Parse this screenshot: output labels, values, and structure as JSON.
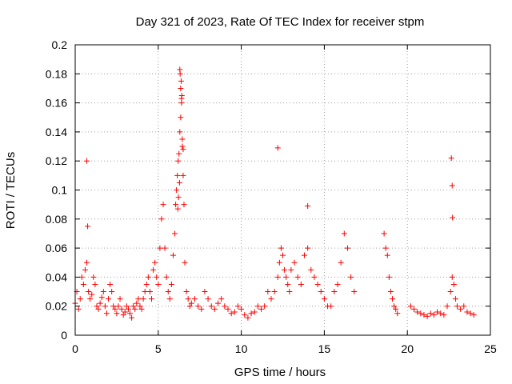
{
  "chart_data": {
    "type": "scatter",
    "title": "Day 321 of 2023, Rate Of TEC Index for receiver stpm",
    "xlabel": "GPS time / hours",
    "ylabel": "ROTI / TECUs",
    "xlim": [
      0,
      25
    ],
    "ylim": [
      0,
      0.2
    ],
    "xticks": [
      0,
      5,
      10,
      15,
      20,
      25
    ],
    "yticks": [
      0,
      0.02,
      0.04,
      0.06,
      0.08,
      0.1,
      0.12,
      0.14,
      0.16,
      0.18,
      0.2
    ],
    "grid": true,
    "marker": "+",
    "color": "#ff0000",
    "series": [
      {
        "values_desc": "ROTI samples",
        "x": [
          0.0,
          0.1,
          0.2,
          0.3,
          0.4,
          0.5,
          0.6,
          0.7,
          0.8,
          0.9,
          1.0,
          1.1,
          1.2,
          1.3,
          1.4,
          1.5,
          1.6,
          1.7,
          1.8,
          1.9,
          2.0,
          2.1,
          2.2,
          2.3,
          2.4,
          2.5,
          2.6,
          2.7,
          2.8,
          2.9,
          3.0,
          3.1,
          3.2,
          3.3,
          3.4,
          3.5,
          3.6,
          3.7,
          3.8,
          3.9,
          4.0,
          4.1,
          4.2,
          4.3,
          4.4,
          4.5,
          4.6,
          4.7,
          4.8,
          4.9,
          5.0,
          5.1,
          5.2,
          5.3,
          5.4,
          5.5,
          5.6,
          5.7,
          5.8,
          5.9,
          6.0,
          6.05,
          6.1,
          6.15,
          6.2,
          6.25,
          6.3,
          6.35,
          6.4,
          6.45,
          6.5,
          6.55,
          6.6,
          6.7,
          6.8,
          6.9,
          7.0,
          7.2,
          7.4,
          7.6,
          7.8,
          8.0,
          8.2,
          8.4,
          8.6,
          8.8,
          9.0,
          9.2,
          9.4,
          9.6,
          9.8,
          10.0,
          10.2,
          10.4,
          10.6,
          10.8,
          11.0,
          11.2,
          11.4,
          11.6,
          11.8,
          12.0,
          12.2,
          12.3,
          12.4,
          12.5,
          12.6,
          12.7,
          12.8,
          12.9,
          13.0,
          13.2,
          13.4,
          13.6,
          13.8,
          14.0,
          14.2,
          14.4,
          14.6,
          14.8,
          15.0,
          15.2,
          15.4,
          15.6,
          15.8,
          16.0,
          16.2,
          16.4,
          16.6,
          16.8,
          18.6,
          18.7,
          18.8,
          18.9,
          19.0,
          19.1,
          19.2,
          19.3,
          19.4,
          20.2,
          20.4,
          20.6,
          20.8,
          21.0,
          21.2,
          21.4,
          21.6,
          21.8,
          22.0,
          22.2,
          22.4,
          22.6,
          22.7,
          22.8,
          22.9,
          23.0,
          23.2,
          23.4,
          23.6,
          23.8,
          24.0,
          0.7,
          0.75,
          12.2,
          14.0,
          22.65,
          22.7,
          22.72,
          6.3,
          6.35,
          6.4,
          6.45,
          6.5,
          6.32,
          6.38,
          6.42,
          6.28,
          6.22,
          6.18
        ],
        "y": [
          0.022,
          0.03,
          0.018,
          0.025,
          0.04,
          0.035,
          0.045,
          0.05,
          0.03,
          0.025,
          0.028,
          0.04,
          0.035,
          0.02,
          0.018,
          0.022,
          0.026,
          0.03,
          0.02,
          0.015,
          0.025,
          0.035,
          0.03,
          0.02,
          0.018,
          0.015,
          0.02,
          0.025,
          0.018,
          0.014,
          0.016,
          0.02,
          0.018,
          0.015,
          0.012,
          0.02,
          0.018,
          0.022,
          0.025,
          0.02,
          0.018,
          0.025,
          0.03,
          0.035,
          0.04,
          0.03,
          0.025,
          0.045,
          0.05,
          0.04,
          0.035,
          0.06,
          0.08,
          0.09,
          0.06,
          0.04,
          0.03,
          0.025,
          0.035,
          0.055,
          0.07,
          0.09,
          0.1,
          0.11,
          0.12,
          0.125,
          0.14,
          0.15,
          0.16,
          0.13,
          0.11,
          0.09,
          0.05,
          0.03,
          0.025,
          0.02,
          0.022,
          0.025,
          0.02,
          0.018,
          0.03,
          0.025,
          0.02,
          0.018,
          0.022,
          0.025,
          0.02,
          0.018,
          0.015,
          0.016,
          0.02,
          0.018,
          0.014,
          0.012,
          0.015,
          0.016,
          0.02,
          0.018,
          0.02,
          0.03,
          0.025,
          0.03,
          0.04,
          0.05,
          0.06,
          0.055,
          0.045,
          0.04,
          0.035,
          0.03,
          0.045,
          0.05,
          0.04,
          0.035,
          0.055,
          0.06,
          0.045,
          0.04,
          0.035,
          0.03,
          0.025,
          0.02,
          0.02,
          0.03,
          0.035,
          0.05,
          0.07,
          0.06,
          0.04,
          0.03,
          0.07,
          0.06,
          0.055,
          0.04,
          0.03,
          0.025,
          0.02,
          0.018,
          0.015,
          0.02,
          0.018,
          0.016,
          0.015,
          0.014,
          0.013,
          0.015,
          0.014,
          0.016,
          0.015,
          0.014,
          0.02,
          0.03,
          0.04,
          0.035,
          0.025,
          0.02,
          0.018,
          0.02,
          0.016,
          0.015,
          0.014,
          0.12,
          0.075,
          0.129,
          0.089,
          0.122,
          0.103,
          0.081,
          0.183,
          0.17,
          0.163,
          0.135,
          0.128,
          0.18,
          0.175,
          0.165,
          0.105,
          0.095,
          0.087
        ]
      }
    ]
  }
}
